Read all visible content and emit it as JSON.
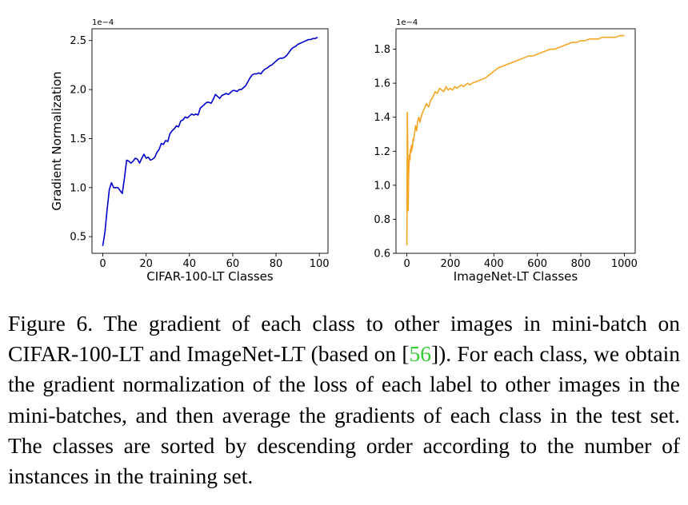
{
  "chart_data": [
    {
      "type": "line",
      "title": "",
      "xlabel": "CIFAR-100-LT Classes",
      "ylabel": "Gradient Normalization",
      "exponent_label": "1e−4",
      "xlim": [
        -5,
        104
      ],
      "ylim": [
        0.33,
        2.62
      ],
      "x_ticks": [
        0,
        20,
        40,
        60,
        80,
        100
      ],
      "y_ticks": [
        0.5,
        1.0,
        1.5,
        2.0,
        2.5
      ],
      "y_tick_labels": [
        "0.5",
        "1.0",
        "1.5",
        "2.0",
        "2.5"
      ],
      "grid": false,
      "legend": "none",
      "color": "#0000cc",
      "series": [
        {
          "x": [
            0,
            1,
            2,
            3,
            4,
            5,
            6,
            7,
            8,
            9,
            10,
            11,
            12,
            13,
            14,
            15,
            16,
            17,
            18,
            19,
            20,
            21,
            22,
            23,
            24,
            25,
            26,
            27,
            28,
            29,
            30,
            31,
            32,
            33,
            34,
            35,
            36,
            37,
            38,
            39,
            40,
            41,
            42,
            43,
            44,
            45,
            46,
            47,
            48,
            49,
            50,
            51,
            52,
            53,
            54,
            55,
            56,
            57,
            58,
            59,
            60,
            61,
            62,
            63,
            64,
            65,
            66,
            67,
            68,
            69,
            70,
            71,
            72,
            73,
            74,
            75,
            76,
            77,
            78,
            79,
            80,
            81,
            82,
            83,
            84,
            85,
            86,
            87,
            88,
            89,
            90,
            91,
            92,
            93,
            94,
            95,
            96,
            97,
            98,
            99
          ],
          "values": [
            0.41,
            0.55,
            0.78,
            0.98,
            1.05,
            1.0,
            1.0,
            1.0,
            0.97,
            0.94,
            1.1,
            1.28,
            1.27,
            1.25,
            1.27,
            1.3,
            1.29,
            1.25,
            1.3,
            1.34,
            1.3,
            1.31,
            1.28,
            1.29,
            1.31,
            1.36,
            1.39,
            1.45,
            1.44,
            1.48,
            1.47,
            1.55,
            1.58,
            1.6,
            1.63,
            1.62,
            1.68,
            1.69,
            1.72,
            1.71,
            1.73,
            1.75,
            1.74,
            1.75,
            1.74,
            1.81,
            1.83,
            1.85,
            1.87,
            1.87,
            1.86,
            1.9,
            1.95,
            1.93,
            1.91,
            1.94,
            1.95,
            1.96,
            1.95,
            1.97,
            1.99,
            1.99,
            1.98,
            2.0,
            2.0,
            2.02,
            2.04,
            2.08,
            2.12,
            2.15,
            2.16,
            2.16,
            2.17,
            2.16,
            2.19,
            2.21,
            2.22,
            2.24,
            2.25,
            2.27,
            2.29,
            2.31,
            2.32,
            2.32,
            2.33,
            2.35,
            2.38,
            2.41,
            2.43,
            2.44,
            2.46,
            2.47,
            2.48,
            2.49,
            2.5,
            2.51,
            2.51,
            2.52,
            2.52,
            2.53
          ]
        }
      ]
    },
    {
      "type": "line",
      "title": "",
      "xlabel": "ImageNet-LT Classes",
      "ylabel": "",
      "exponent_label": "1e−4",
      "xlim": [
        -50,
        1050
      ],
      "ylim": [
        0.6,
        1.92
      ],
      "x_ticks": [
        0,
        200,
        400,
        600,
        800,
        1000
      ],
      "y_ticks": [
        0.6,
        0.8,
        1.0,
        1.2,
        1.4,
        1.6,
        1.8
      ],
      "y_tick_labels": [
        "0.6",
        "0.8",
        "1.0",
        "1.2",
        "1.4",
        "1.6",
        "1.8"
      ],
      "grid": false,
      "legend": "none",
      "color": "#f5a623",
      "series": [
        {
          "x": [
            0,
            2,
            4,
            6,
            8,
            10,
            12,
            14,
            16,
            18,
            20,
            22,
            24,
            26,
            28,
            30,
            35,
            40,
            45,
            50,
            55,
            60,
            70,
            80,
            90,
            100,
            110,
            120,
            130,
            140,
            150,
            160,
            170,
            180,
            190,
            200,
            210,
            220,
            230,
            240,
            250,
            260,
            270,
            280,
            290,
            300,
            320,
            340,
            360,
            380,
            400,
            420,
            440,
            460,
            480,
            500,
            520,
            540,
            560,
            580,
            600,
            620,
            640,
            660,
            680,
            700,
            720,
            740,
            760,
            780,
            800,
            820,
            840,
            860,
            880,
            900,
            920,
            940,
            960,
            980,
            999
          ],
          "values": [
            0.65,
            1.43,
            1.25,
            0.85,
            1.05,
            1.12,
            1.18,
            1.15,
            1.21,
            1.19,
            1.23,
            1.2,
            1.24,
            1.22,
            1.27,
            1.26,
            1.3,
            1.35,
            1.32,
            1.38,
            1.4,
            1.37,
            1.42,
            1.45,
            1.48,
            1.46,
            1.5,
            1.52,
            1.55,
            1.54,
            1.57,
            1.56,
            1.55,
            1.58,
            1.56,
            1.57,
            1.56,
            1.58,
            1.57,
            1.58,
            1.59,
            1.58,
            1.59,
            1.6,
            1.59,
            1.6,
            1.61,
            1.62,
            1.63,
            1.65,
            1.67,
            1.69,
            1.7,
            1.71,
            1.72,
            1.73,
            1.74,
            1.75,
            1.76,
            1.76,
            1.77,
            1.78,
            1.79,
            1.8,
            1.8,
            1.81,
            1.82,
            1.83,
            1.84,
            1.84,
            1.85,
            1.85,
            1.86,
            1.86,
            1.86,
            1.87,
            1.87,
            1.87,
            1.87,
            1.88,
            1.88
          ]
        }
      ]
    }
  ],
  "caption": {
    "text_before": "Figure 6. The gradient of each class to other images in mini-batch on CIFAR-100-LT and ImageNet-LT (based on [",
    "citation": "56",
    "text_after": "]).  For each class, we obtain the gradient normalization of the loss of each label to other images in the mini-batches, and then average the gradients of each class in the test set. The classes are sorted by descending order according to the number of instances in the training set."
  }
}
